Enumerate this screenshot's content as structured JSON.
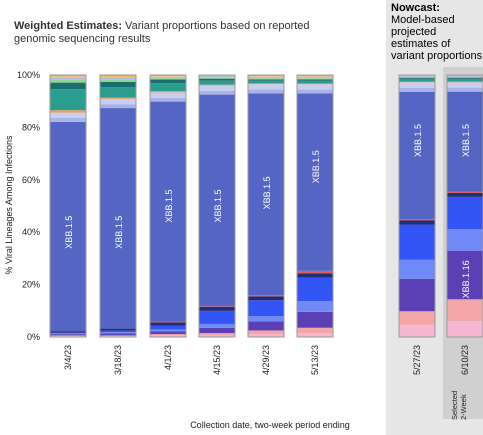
{
  "title": {
    "bold": "Weighted Estimates:",
    "rest": " Variant proportions based on reported genomic sequencing results"
  },
  "nowcast": {
    "bold": "Nowcast:",
    "rest": "Model-based projected estimates of variant proportions"
  },
  "selected_note": "Selected 2-Week",
  "colors": {
    "xbb15": "#5465c3",
    "nowcast_bg": "#e6e6e6",
    "selected_highlight": "#d0d0d0"
  },
  "chart_data": {
    "type": "bar",
    "stacked": true,
    "ylabel": "% Viral Lineages Among Infections",
    "xlabel": "Collection date, two-week period ending",
    "ylim": [
      0,
      100
    ],
    "yticks": [
      "0%",
      "20%",
      "40%",
      "60%",
      "80%",
      "100%"
    ],
    "grid": false,
    "categories": [
      "3/4/23",
      "3/18/23",
      "4/1/23",
      "4/15/23",
      "4/29/23",
      "5/13/23",
      "5/27/23",
      "6/10/23"
    ],
    "bar_labels": [
      "XBB.1.5",
      "XBB.1.5",
      "XBB.1.5",
      "XBB.1.5",
      "XBB.1.5",
      "XBB.1.5",
      "XBB.1.5",
      "XBB.1.5"
    ],
    "bar_label_y": [
      40,
      40,
      50,
      50,
      55,
      65,
      75,
      75
    ],
    "second_label": {
      "category": "6/10/23",
      "text": "XBB.1.16",
      "y": 22
    },
    "series": [
      {
        "color": "#f7b6d2",
        "values": [
          0.3,
          0.3,
          0.5,
          0.5,
          1.0,
          1.5,
          4.5,
          6.0
        ]
      },
      {
        "color": "#f4a6a6",
        "values": [
          0.3,
          0.3,
          0.6,
          1.0,
          1.5,
          2.0,
          5.0,
          8.0
        ]
      },
      {
        "color": "#5b3fb5",
        "values": [
          0.5,
          0.8,
          1.0,
          2.0,
          3.5,
          6.0,
          12.0,
          18.0
        ]
      },
      {
        "color": "#6f8af7",
        "values": [
          0.3,
          0.5,
          0.8,
          1.5,
          2.0,
          4.0,
          7.0,
          8.0
        ]
      },
      {
        "color": "#3455f5",
        "values": [
          0.2,
          0.5,
          1.5,
          5.0,
          6.0,
          9.0,
          13.0,
          12.0
        ]
      },
      {
        "color": "#1f2e7a",
        "values": [
          0.5,
          0.8,
          1.2,
          1.5,
          1.5,
          1.5,
          1.5,
          1.5
        ]
      },
      {
        "color": "#e05c5c",
        "values": [
          0.0,
          0.0,
          0.2,
          0.2,
          0.5,
          1.0,
          0.5,
          0.5
        ]
      },
      {
        "color": "#5465c3",
        "values": [
          80.0,
          84.0,
          84.5,
          81.0,
          77.0,
          67.0,
          47.0,
          37.0
        ]
      },
      {
        "color": "#a9b3e6",
        "values": [
          1.5,
          1.5,
          1.5,
          1.5,
          1.5,
          1.5,
          1.5,
          1.5
        ]
      },
      {
        "color": "#c8cef2",
        "values": [
          2.0,
          2.0,
          2.0,
          2.0,
          2.0,
          2.0,
          2.0,
          2.0
        ]
      },
      {
        "color": "#d9a46e",
        "values": [
          1.0,
          0.5,
          0.5,
          0.3,
          0.3,
          0.3,
          0.3,
          0.3
        ]
      },
      {
        "color": "#2a9d8f",
        "values": [
          8.0,
          4.0,
          3.0,
          1.5,
          1.0,
          1.0,
          1.0,
          1.0
        ]
      },
      {
        "color": "#1b6e6e",
        "values": [
          2.5,
          2.0,
          1.5,
          0.8,
          0.5,
          0.5,
          0.4,
          0.4
        ]
      },
      {
        "color": "#8fd694",
        "values": [
          1.0,
          1.0,
          0.5,
          0.5,
          0.5,
          0.5,
          0.3,
          0.3
        ]
      },
      {
        "color": "#b5bde9",
        "values": [
          1.0,
          0.8,
          0.5,
          0.5,
          0.5,
          0.5,
          0.3,
          0.3
        ]
      },
      {
        "color": "#f2c14e",
        "values": [
          0.4,
          0.4,
          0.2,
          0.2,
          0.2,
          0.2,
          0.2,
          0.2
        ]
      },
      {
        "color": "#e8a0a0",
        "values": [
          0.5,
          0.4,
          0.5,
          0.2,
          0.5,
          0.5,
          0.2,
          0.2
        ]
      }
    ]
  }
}
